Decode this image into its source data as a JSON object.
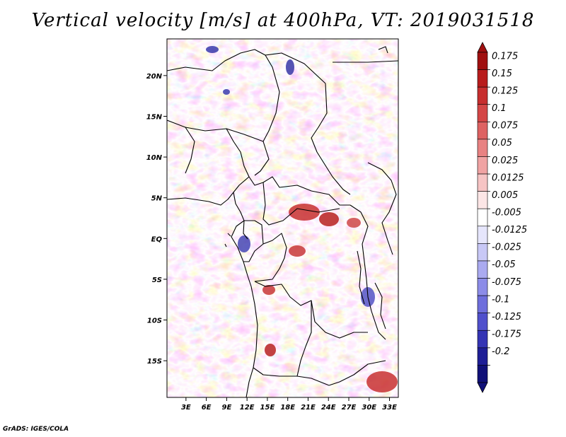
{
  "title": "Vertical velocity [m/s] at 400hPa, VT: 2019031518",
  "credit": "GrADS: IGES/COLA",
  "map": {
    "lat_labels": [
      "20N",
      "15N",
      "10N",
      "5N",
      "EQ",
      "5S",
      "10S",
      "15S"
    ],
    "lon_labels": [
      "3E",
      "6E",
      "9E",
      "12E",
      "15E",
      "18E",
      "21E",
      "24E",
      "27E",
      "30E",
      "33E"
    ],
    "lat_values": [
      20,
      15,
      10,
      5,
      0,
      -5,
      -10,
      -15
    ],
    "lon_values": [
      3,
      6,
      9,
      12,
      15,
      18,
      21,
      24,
      27,
      30,
      33
    ],
    "lat_range": [
      -19.5,
      24.5
    ],
    "lon_range": [
      0.2,
      34.3
    ]
  },
  "colorbar": {
    "labels": [
      "0.175",
      "0.15",
      "0.125",
      "0.1",
      "0.075",
      "0.05",
      "0.025",
      "0.0125",
      "0.005",
      "-0.005",
      "-0.0125",
      "-0.025",
      "-0.05",
      "-0.075",
      "-0.1",
      "-0.125",
      "-0.175",
      "-0.2"
    ],
    "colors": [
      "#a01010",
      "#b81c1c",
      "#c72e2e",
      "#d44646",
      "#de6262",
      "#e88282",
      "#f0a3a3",
      "#f6c4c4",
      "#fce6e6",
      "#ffffff",
      "#e6e6fc",
      "#c8c8f6",
      "#aaaaf0",
      "#8c8ce8",
      "#6e6edc",
      "#5050cc",
      "#3434b4",
      "#1e1e96",
      "#101078"
    ],
    "min_color": "#101078",
    "max_color": "#a01010"
  },
  "colors": {
    "positive_high": "#a01010",
    "positive_mid": "#de6262",
    "neutral": "#ffffff",
    "negative_mid": "#8c8ce8",
    "negative_low": "#101078"
  }
}
